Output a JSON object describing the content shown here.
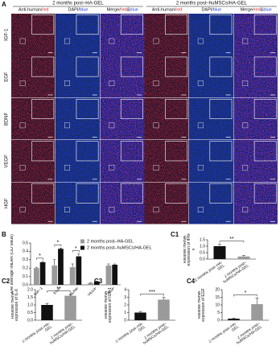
{
  "panel_a": {
    "label": "A",
    "groups": [
      "2 months post–HA-GEL",
      "2 months post–huMSCs/HA-GEL"
    ],
    "channels": [
      [
        {
          "text": "Anti-human/",
          "color": "#111111"
        },
        {
          "text": "red",
          "color": "#e02020"
        }
      ],
      [
        {
          "text": "DAPI/",
          "color": "#111111"
        },
        {
          "text": "blue",
          "color": "#2040e0"
        }
      ],
      [
        {
          "text": "Merge/",
          "color": "#111111"
        },
        {
          "text": "red",
          "color": "#e02020"
        },
        {
          "text": "&",
          "color": "#111111"
        },
        {
          "text": "blue",
          "color": "#2040e0"
        }
      ]
    ],
    "rows": [
      "IGF-1",
      "EGF",
      "BDNF",
      "VEGF",
      "HGF"
    ]
  },
  "chart_data": [
    {
      "type": "grouped_bar",
      "panel": "B",
      "ylabel": "The average IntDen (OD value)",
      "categories": [
        "IGF-1",
        "EGF",
        "BDNF",
        "VEGF",
        "HGF"
      ],
      "series": [
        {
          "name": "2 months post–HA-GEL",
          "color": "#9a9a9a",
          "values": [
            0.2,
            0.23,
            0.21,
            0.02,
            0.23
          ],
          "errors": [
            0.01,
            0.07,
            0.04,
            0.005,
            0.02
          ]
        },
        {
          "name": "2 months post–huMSCs/HA-GEL",
          "color": "#111111",
          "values": [
            0.27,
            0.43,
            0.34,
            0.04,
            0.24
          ],
          "errors": [
            0.01,
            0.01,
            0.03,
            0.005,
            0.01
          ]
        }
      ],
      "significance": [
        "*",
        "*",
        "*",
        null,
        null
      ],
      "ylim": [
        0,
        0.5
      ],
      "yticks": [
        {
          "value": 0,
          "label": "0.0"
        },
        0.1,
        0.2,
        0.3,
        0.4,
        0.5
      ],
      "legend": "upper right"
    },
    {
      "type": "bar",
      "panel": "C1",
      "ylabel": "Relative mRNA expression of IFN-γ",
      "categories": [
        "2 months post–HA-GEL",
        "2 months post–huMSCs/HA-GEL"
      ],
      "values": [
        1.0,
        0.2
      ],
      "errors": [
        0.15,
        0.08
      ],
      "colors": [
        "#111111",
        "#9a9a9a"
      ],
      "significance": "**",
      "ylim": [
        0,
        1.5
      ],
      "yticks": [
        {
          "value": 0,
          "label": "0.0"
        },
        0.5,
        {
          "value": 1,
          "label": "1.0"
        },
        1.5
      ]
    },
    {
      "type": "bar",
      "panel": "C2",
      "ylabel": "Relative mRNA expression of IL-6",
      "categories": [
        "2 months post–HA-GEL",
        "2 months post–huMSCs/HA-GEL"
      ],
      "values": [
        1.0,
        1.6
      ],
      "errors": [
        0.1,
        0.1
      ],
      "colors": [
        "#111111",
        "#9a9a9a"
      ],
      "significance": "**",
      "ylim": [
        0,
        2
      ],
      "yticks": [
        {
          "value": 0,
          "label": "0.0"
        },
        0.5,
        {
          "value": 1,
          "label": "1.0"
        },
        1.5,
        {
          "value": 2,
          "label": "2.0"
        }
      ]
    },
    {
      "type": "bar",
      "panel": "C3",
      "ylabel": "Relative mRNA expression of IGF-1",
      "categories": [
        "2 months post–HA-GEL",
        "2 months post–huMSCs/HA-GEL"
      ],
      "values": [
        1.0,
        2.7
      ],
      "errors": [
        0.15,
        0.3
      ],
      "colors": [
        "#111111",
        "#9a9a9a"
      ],
      "significance": "***",
      "ylim": [
        0,
        4
      ],
      "yticks": [
        0,
        1,
        2,
        3,
        4
      ]
    },
    {
      "type": "bar",
      "panel": "C4",
      "ylabel": "Relative mRNA expression of EGF",
      "categories": [
        "2 months post–HA-GEL",
        "2 months post–huMSCs/HA-GEL"
      ],
      "values": [
        1.0,
        10.5
      ],
      "errors": [
        0.3,
        4
      ],
      "colors": [
        "#111111",
        "#9a9a9a"
      ],
      "significance": "*",
      "ylim": [
        0,
        20
      ],
      "yticks": [
        0,
        5,
        10,
        15,
        20
      ]
    }
  ]
}
